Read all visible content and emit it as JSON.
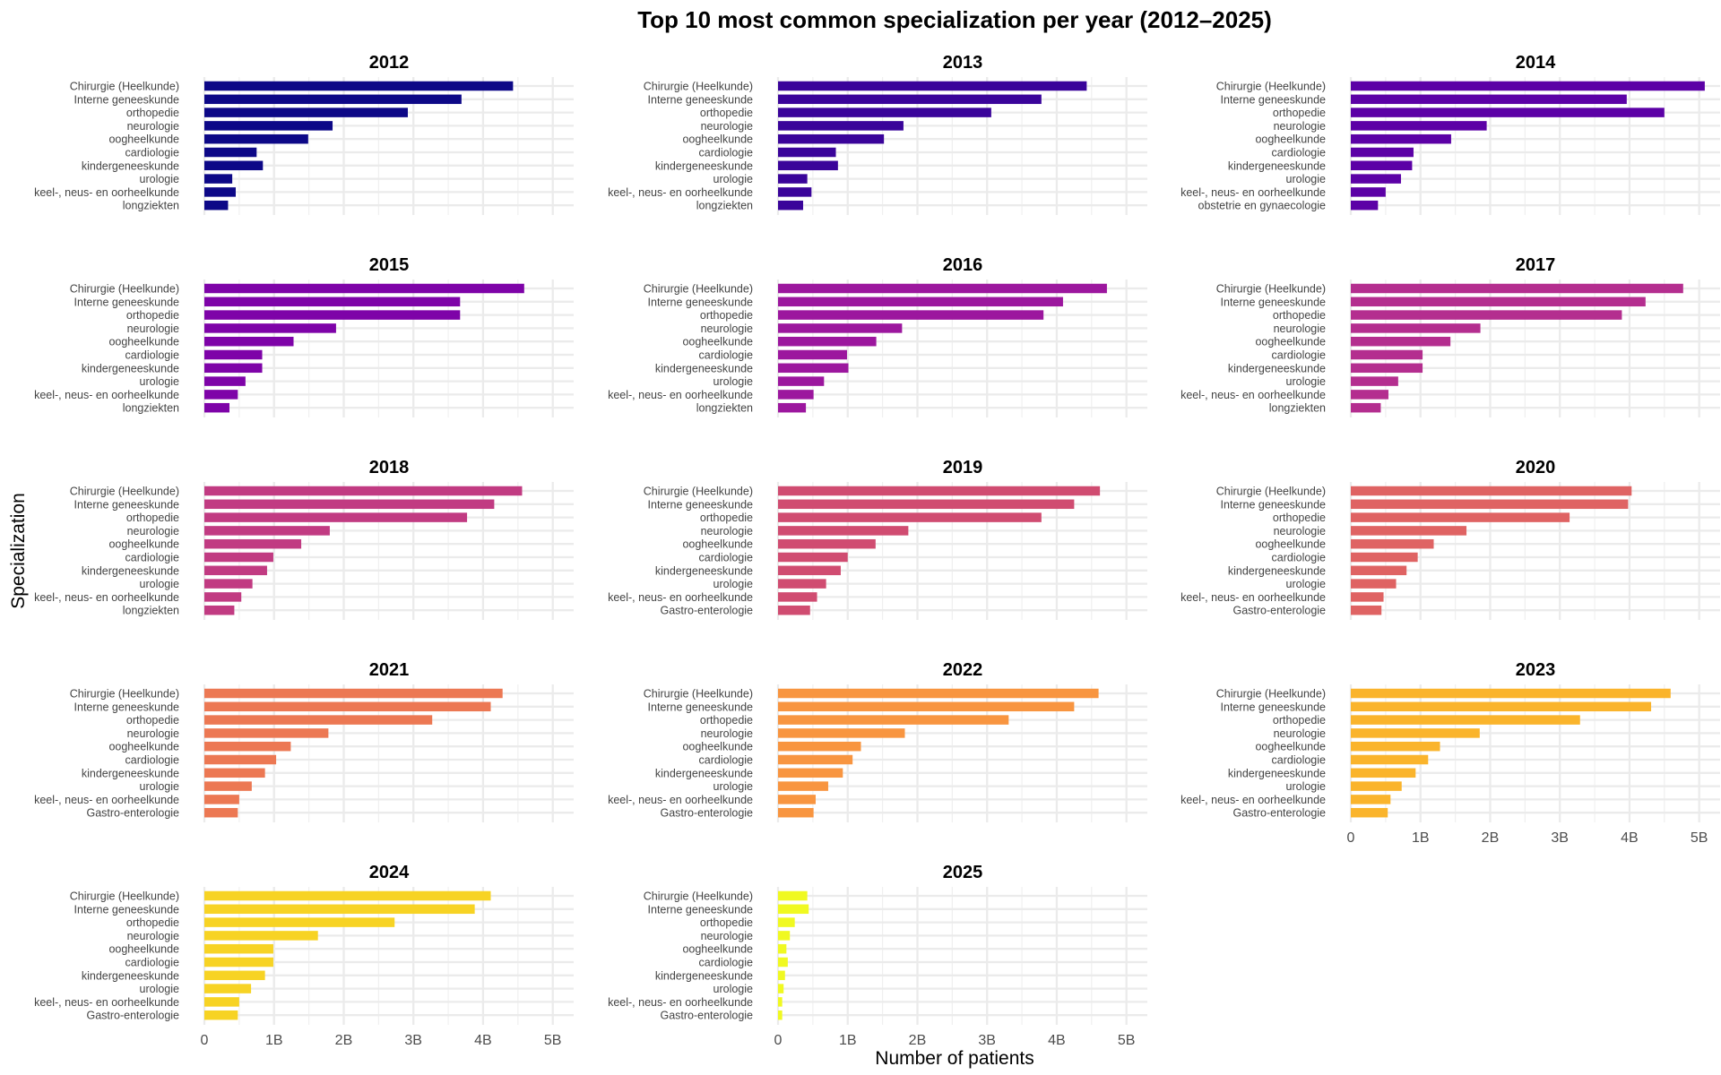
{
  "chart_data": {
    "type": "bar",
    "orientation": "horizontal",
    "title": "Top 10 most common specialization per year (2012–2025)",
    "xlabel": "Number of patients",
    "ylabel": "Specialization",
    "xlim": [
      0,
      5.3
    ],
    "x_ticks": [
      0,
      1,
      2,
      3,
      4,
      5
    ],
    "x_tick_labels": [
      "0",
      "1B",
      "2B",
      "3B",
      "4B",
      "5B"
    ],
    "value_unit": "billions of patients",
    "panels": [
      {
        "year": "2012",
        "color": "#0d0887",
        "categories": [
          "Chirurgie (Heelkunde)",
          "Interne geneeskunde",
          "orthopedie",
          "neurologie",
          "oogheelkunde",
          "cardiologie",
          "kindergeneeskunde",
          "urologie",
          "keel-, neus- en oorheelkunde",
          "longziekten"
        ],
        "values": [
          4.43,
          3.69,
          2.92,
          1.84,
          1.49,
          0.75,
          0.84,
          0.4,
          0.45,
          0.34
        ]
      },
      {
        "year": "2013",
        "color": "#3a049a",
        "categories": [
          "Chirurgie (Heelkunde)",
          "Interne geneeskunde",
          "orthopedie",
          "neurologie",
          "oogheelkunde",
          "cardiologie",
          "kindergeneeskunde",
          "urologie",
          "keel-, neus- en oorheelkunde",
          "longziekten"
        ],
        "values": [
          4.43,
          3.78,
          3.06,
          1.8,
          1.52,
          0.83,
          0.86,
          0.42,
          0.48,
          0.36
        ]
      },
      {
        "year": "2014",
        "color": "#5c01a6",
        "categories": [
          "Chirurgie (Heelkunde)",
          "Interne geneeskunde",
          "orthopedie",
          "neurologie",
          "oogheelkunde",
          "cardiologie",
          "kindergeneeskunde",
          "urologie",
          "keel-, neus- en oorheelkunde",
          "obstetrie en gynaecologie"
        ],
        "values": [
          5.08,
          3.96,
          4.5,
          1.95,
          1.44,
          0.9,
          0.88,
          0.72,
          0.5,
          0.39
        ]
      },
      {
        "year": "2015",
        "color": "#7e03a8",
        "categories": [
          "Chirurgie (Heelkunde)",
          "Interne geneeskunde",
          "orthopedie",
          "neurologie",
          "oogheelkunde",
          "cardiologie",
          "kindergeneeskunde",
          "urologie",
          "keel-, neus- en oorheelkunde",
          "longziekten"
        ],
        "values": [
          4.59,
          3.67,
          3.67,
          1.89,
          1.28,
          0.83,
          0.83,
          0.59,
          0.48,
          0.36
        ]
      },
      {
        "year": "2016",
        "color": "#9c179e",
        "categories": [
          "Chirurgie (Heelkunde)",
          "Interne geneeskunde",
          "orthopedie",
          "neurologie",
          "oogheelkunde",
          "cardiologie",
          "kindergeneeskunde",
          "urologie",
          "keel-, neus- en oorheelkunde",
          "longziekten"
        ],
        "values": [
          4.72,
          4.09,
          3.81,
          1.78,
          1.41,
          0.99,
          1.01,
          0.66,
          0.51,
          0.4
        ]
      },
      {
        "year": "2017",
        "color": "#b42e8f",
        "categories": [
          "Chirurgie (Heelkunde)",
          "Interne geneeskunde",
          "orthopedie",
          "neurologie",
          "oogheelkunde",
          "cardiologie",
          "kindergeneeskunde",
          "urologie",
          "keel-, neus- en oorheelkunde",
          "longziekten"
        ],
        "values": [
          4.77,
          4.23,
          3.89,
          1.86,
          1.43,
          1.03,
          1.03,
          0.68,
          0.54,
          0.43
        ]
      },
      {
        "year": "2018",
        "color": "#c13b82",
        "categories": [
          "Chirurgie (Heelkunde)",
          "Interne geneeskunde",
          "orthopedie",
          "neurologie",
          "oogheelkunde",
          "cardiologie",
          "kindergeneeskunde",
          "urologie",
          "keel-, neus- en oorheelkunde",
          "longziekten"
        ],
        "values": [
          4.56,
          4.16,
          3.77,
          1.8,
          1.39,
          0.99,
          0.9,
          0.69,
          0.53,
          0.43
        ]
      },
      {
        "year": "2019",
        "color": "#d04c71",
        "categories": [
          "Chirurgie (Heelkunde)",
          "Interne geneeskunde",
          "orthopedie",
          "neurologie",
          "oogheelkunde",
          "cardiologie",
          "kindergeneeskunde",
          "urologie",
          "keel-, neus- en oorheelkunde",
          "Gastro-enterologie"
        ],
        "values": [
          4.62,
          4.25,
          3.78,
          1.87,
          1.4,
          1.0,
          0.9,
          0.69,
          0.56,
          0.46
        ]
      },
      {
        "year": "2020",
        "color": "#df6363",
        "categories": [
          "Chirurgie (Heelkunde)",
          "Interne geneeskunde",
          "orthopedie",
          "neurologie",
          "oogheelkunde",
          "cardiologie",
          "kindergeneeskunde",
          "urologie",
          "keel-, neus- en oorheelkunde",
          "Gastro-enterologie"
        ],
        "values": [
          4.03,
          3.98,
          3.14,
          1.66,
          1.19,
          0.96,
          0.8,
          0.65,
          0.47,
          0.44
        ]
      },
      {
        "year": "2021",
        "color": "#ec7853",
        "categories": [
          "Chirurgie (Heelkunde)",
          "Interne geneeskunde",
          "orthopedie",
          "neurologie",
          "oogheelkunde",
          "cardiologie",
          "kindergeneeskunde",
          "urologie",
          "keel-, neus- en oorheelkunde",
          "Gastro-enterologie"
        ],
        "values": [
          4.28,
          4.11,
          3.27,
          1.78,
          1.24,
          1.03,
          0.87,
          0.68,
          0.5,
          0.48
        ]
      },
      {
        "year": "2022",
        "color": "#f89540",
        "categories": [
          "Chirurgie (Heelkunde)",
          "Interne geneeskunde",
          "orthopedie",
          "neurologie",
          "oogheelkunde",
          "cardiologie",
          "kindergeneeskunde",
          "urologie",
          "keel-, neus- en oorheelkunde",
          "Gastro-enterologie"
        ],
        "values": [
          4.6,
          4.25,
          3.31,
          1.82,
          1.19,
          1.07,
          0.93,
          0.72,
          0.54,
          0.51
        ]
      },
      {
        "year": "2023",
        "color": "#fab42c",
        "categories": [
          "Chirurgie (Heelkunde)",
          "Interne geneeskunde",
          "orthopedie",
          "neurologie",
          "oogheelkunde",
          "cardiologie",
          "kindergeneeskunde",
          "urologie",
          "keel-, neus- en oorheelkunde",
          "Gastro-enterologie"
        ],
        "values": [
          4.59,
          4.31,
          3.29,
          1.85,
          1.28,
          1.11,
          0.93,
          0.73,
          0.57,
          0.53
        ]
      },
      {
        "year": "2024",
        "color": "#f7d324",
        "categories": [
          "Chirurgie (Heelkunde)",
          "Interne geneeskunde",
          "orthopedie",
          "neurologie",
          "oogheelkunde",
          "cardiologie",
          "kindergeneeskunde",
          "urologie",
          "keel-, neus- en oorheelkunde",
          "Gastro-enterologie"
        ],
        "values": [
          4.11,
          3.88,
          2.73,
          1.63,
          0.99,
          0.99,
          0.87,
          0.67,
          0.5,
          0.48
        ]
      },
      {
        "year": "2025",
        "color": "#f0f921",
        "categories": [
          "Chirurgie (Heelkunde)",
          "Interne geneeskunde",
          "orthopedie",
          "neurologie",
          "oogheelkunde",
          "cardiologie",
          "kindergeneeskunde",
          "urologie",
          "keel-, neus- en oorheelkunde",
          "Gastro-enterologie"
        ],
        "values": [
          0.42,
          0.44,
          0.24,
          0.17,
          0.12,
          0.14,
          0.1,
          0.08,
          0.06,
          0.06
        ]
      }
    ]
  }
}
